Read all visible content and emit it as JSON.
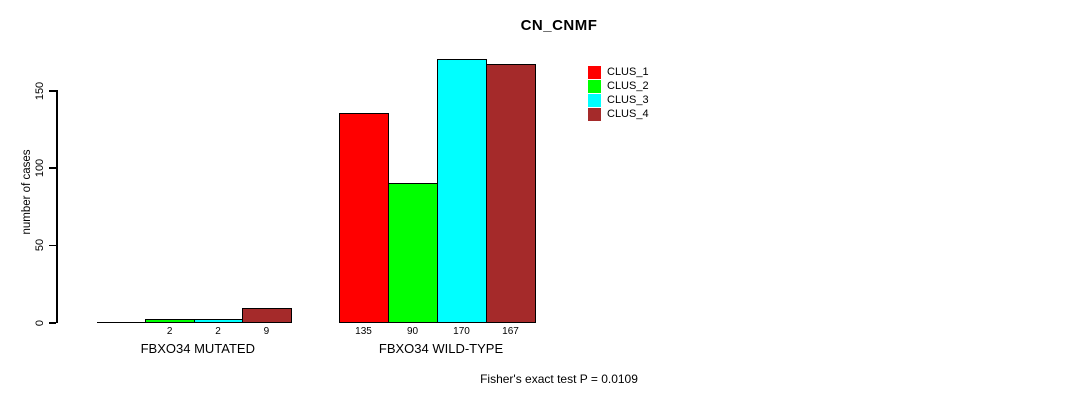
{
  "chart_data": {
    "type": "bar",
    "title": "CN_CNMF",
    "ylabel": "number of cases",
    "ylim": [
      0,
      150
    ],
    "yticks": [
      0,
      50,
      100,
      150
    ],
    "grid": false,
    "legend": {
      "position": "top-right",
      "entries": [
        {
          "label": "CLUS_1",
          "color": "#ff0000"
        },
        {
          "label": "CLUS_2",
          "color": "#00ff00"
        },
        {
          "label": "CLUS_3",
          "color": "#00ffff"
        },
        {
          "label": "CLUS_4",
          "color": "#a52a2a"
        }
      ]
    },
    "groups": [
      {
        "label": "FBXO34 MUTATED",
        "values": [
          0,
          2,
          2,
          9
        ],
        "value_labels": [
          "",
          "2",
          "2",
          "9"
        ]
      },
      {
        "label": "FBXO34 WILD-TYPE",
        "values": [
          135,
          90,
          170,
          167
        ],
        "value_labels": [
          "135",
          "90",
          "170",
          "167"
        ]
      }
    ],
    "footnote": "Fisher's exact test P = 0.0109"
  }
}
